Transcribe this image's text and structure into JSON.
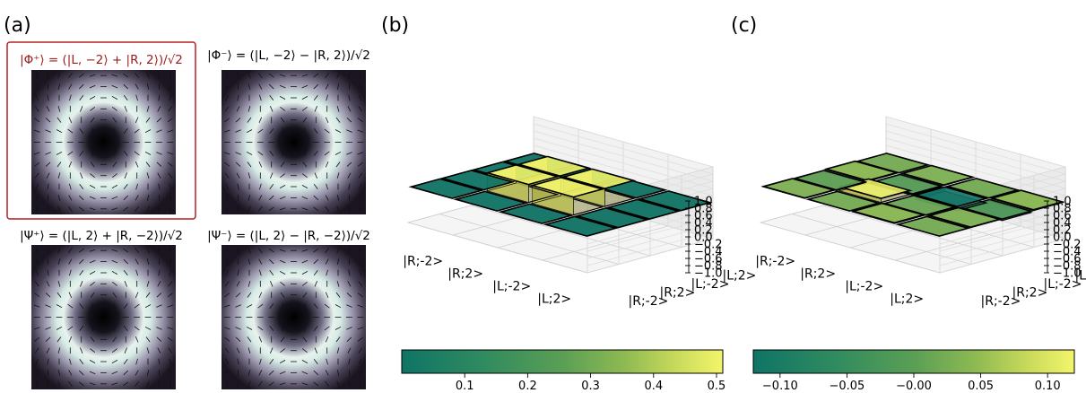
{
  "panels": {
    "a": {
      "label": "(a)"
    },
    "b": {
      "label": "(b)"
    },
    "c": {
      "label": "(c)"
    }
  },
  "beam_titles": {
    "phi_plus": "|Φ⁺⟩ = (|L, −2⟩ + |R, 2⟩)/√2",
    "phi_minus": "|Φ⁻⟩ = (|L, −2⟩ − |R, 2⟩)/√2",
    "psi_plus": "|Ψ⁺⟩ = (|L, 2⟩ + |R, −2⟩)/√2",
    "psi_minus": "|Ψ⁻⟩ = (|L, 2⟩ − |R, −2⟩)/√2"
  },
  "highlight_color": "#b22222",
  "chart_data": [
    {
      "type": "bar3d",
      "panel": "b",
      "row_labels": [
        "|R;-2>",
        "|R;2>",
        "|L;-2>",
        "|L;2>"
      ],
      "col_labels": [
        "|L;2>",
        "|L;-2>",
        "|R;2>",
        "|R;-2>"
      ],
      "values": [
        [
          0,
          0,
          0,
          0
        ],
        [
          0,
          0.5,
          0.5,
          0
        ],
        [
          0,
          0.5,
          0.5,
          0
        ],
        [
          0,
          0,
          0,
          0
        ]
      ],
      "zlim": [
        -1.0,
        1.0
      ],
      "zticks": [
        "1.0",
        "0.8",
        "0.6",
        "0.4",
        "0.2",
        "0.0",
        "−0.2",
        "−0.4",
        "−0.6",
        "−0.8",
        "−1.0"
      ],
      "colorbar": {
        "ticks": [
          "0.1",
          "0.2",
          "0.3",
          "0.4",
          "0.5"
        ],
        "range": [
          0.0,
          0.51
        ]
      },
      "colormap": [
        "#0f7466",
        "#2f8a5f",
        "#5a9f55",
        "#90bb52",
        "#c7d95b",
        "#f3f56a"
      ]
    },
    {
      "type": "bar3d",
      "panel": "c",
      "row_labels": [
        "|R;-2>",
        "|R;2>",
        "|L;-2>",
        "|L;2>"
      ],
      "col_labels": [
        "|L;2>",
        "|L;-2>",
        "|R;2>",
        "|R;-2>"
      ],
      "values": [
        [
          0.01,
          -0.02,
          0.02,
          0.0
        ],
        [
          0.0,
          0.11,
          -0.03,
          0.01
        ],
        [
          0.02,
          -0.01,
          -0.12,
          0.0
        ],
        [
          0.0,
          0.01,
          -0.04,
          0.02
        ]
      ],
      "zlim": [
        -1.0,
        1.0
      ],
      "zticks": [
        "1.0",
        "0.8",
        "0.6",
        "0.4",
        "0.2",
        "0.0",
        "−0.2",
        "−0.4",
        "−0.6",
        "−0.8",
        "−1.0"
      ],
      "colorbar": {
        "ticks": [
          "−0.10",
          "−0.05",
          "−0.00",
          "0.05",
          "0.10"
        ],
        "range": [
          -0.12,
          0.12
        ]
      },
      "colormap": [
        "#0f7466",
        "#2f8a5f",
        "#5a9f55",
        "#90bb52",
        "#c7d95b",
        "#f3f56a"
      ]
    }
  ]
}
